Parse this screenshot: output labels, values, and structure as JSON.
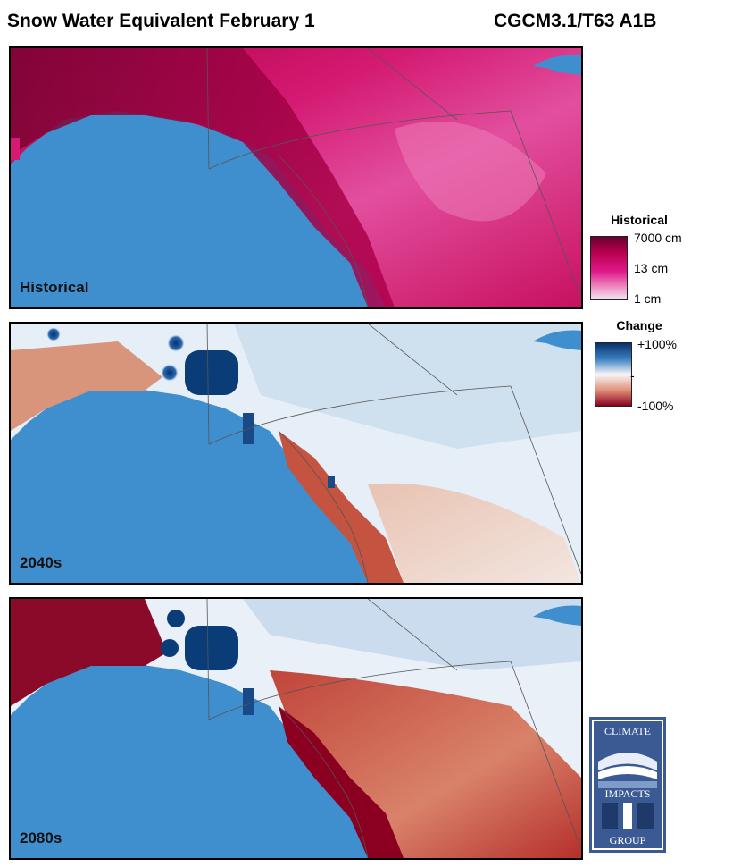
{
  "header": {
    "title": "Snow Water Equivalent February 1",
    "model": "CGCM3.1/T63 A1B"
  },
  "panels": [
    {
      "label": "Historical",
      "kind": "historical"
    },
    {
      "label": "2040s",
      "kind": "change_2040"
    },
    {
      "label": "2080s",
      "kind": "change_2080"
    }
  ],
  "legend_historical": {
    "title": "Historical",
    "ticks": [
      "7000 cm",
      "13 cm",
      "1 cm"
    ],
    "colors": [
      "#6a0030",
      "#e0188a",
      "#f3e6f0"
    ]
  },
  "legend_change": {
    "title": "Change",
    "ticks": [
      "+100%",
      "-",
      "-100%"
    ],
    "colors": [
      "#08306b",
      "#f7f7f7",
      "#8b0020"
    ]
  },
  "logo": {
    "top_text": "CLIMATE",
    "middle_text": "IMPACTS",
    "bottom_text": "GROUP"
  },
  "colors": {
    "ocean": "#3f8fcf",
    "historical_light": "#e04ea0",
    "historical_dark": "#7a0533",
    "change_blue": "#0b3f7a",
    "change_red": "#8b0020"
  }
}
